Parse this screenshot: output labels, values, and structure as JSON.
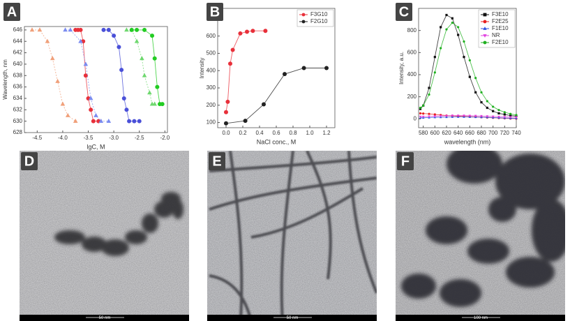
{
  "chart_data": [
    {
      "type": "line",
      "panel": "A",
      "x_label": "lgC, M",
      "y_label": "Wavelength, nm",
      "xlim": [
        -4.75,
        -1.95
      ],
      "ylim": [
        628,
        646.6
      ],
      "xticks": [
        -4.5,
        {
          "value": -4,
          "label": "-4.0"
        },
        -3.5,
        {
          "value": -3,
          "label": "-3.0"
        },
        -2.5,
        {
          "value": -2,
          "label": "-2.0"
        }
      ],
      "yticks": [
        628,
        630,
        632,
        634,
        636,
        638,
        640,
        642,
        644,
        646
      ],
      "series": [
        {
          "color": "#f0a07a",
          "marker": "triangle",
          "dashed": true,
          "x": [
            -4.6,
            -4.45,
            -4.3,
            -4.2,
            -4.1,
            -4.0,
            -3.9,
            -3.75
          ],
          "values": [
            646,
            646,
            644,
            641,
            637,
            633,
            631,
            630
          ]
        },
        {
          "color": "#e8303a",
          "marker": "circle",
          "dashed": false,
          "x": [
            -3.75,
            -3.7,
            -3.65,
            -3.6,
            -3.55,
            -3.5,
            -3.45,
            -3.4,
            -3.3
          ],
          "values": [
            646,
            646,
            646,
            644,
            638,
            634,
            632,
            630,
            630
          ]
        },
        {
          "color": "#7b8cf0",
          "marker": "triangle",
          "dashed": true,
          "x": [
            -3.95,
            -3.85,
            -3.65,
            -3.55,
            -3.45,
            -3.35,
            -3.25,
            -3.1
          ],
          "values": [
            646,
            646,
            644,
            640,
            634,
            631,
            630,
            630
          ]
        },
        {
          "color": "#4a50d8",
          "marker": "circle",
          "dashed": false,
          "x": [
            -3.2,
            -3.1,
            -3.0,
            -2.9,
            -2.85,
            -2.8,
            -2.75,
            -2.7,
            -2.6,
            -2.5
          ],
          "values": [
            646,
            646,
            645,
            643,
            639,
            634,
            632,
            630,
            630,
            630
          ]
        },
        {
          "color": "#6ed86e",
          "marker": "triangle",
          "dashed": true,
          "x": [
            -2.75,
            -2.65,
            -2.55,
            -2.45,
            -2.4,
            -2.3,
            -2.25,
            -2.2
          ],
          "values": [
            646,
            646,
            644,
            641,
            638,
            635,
            633,
            633
          ]
        },
        {
          "color": "#22cc22",
          "marker": "circle",
          "dashed": false,
          "x": [
            -2.65,
            -2.55,
            -2.4,
            -2.25,
            -2.2,
            -2.15,
            -2.1,
            -2.05
          ],
          "values": [
            646,
            646,
            646,
            645,
            641,
            636,
            633,
            633
          ]
        }
      ]
    },
    {
      "type": "line",
      "panel": "B",
      "x_label": "NaCl conc., M",
      "y_label": "Intensity",
      "xlim": [
        -0.1,
        1.3
      ],
      "ylim": [
        70,
        760
      ],
      "xticks": [
        {
          "value": 0,
          "label": "0.0"
        },
        0.2,
        0.4,
        0.6,
        0.8,
        {
          "value": 1,
          "label": "1.0"
        },
        1.2
      ],
      "yticks": [
        100,
        200,
        300,
        400,
        500,
        600,
        700
      ],
      "legend": "upper right",
      "series": [
        {
          "name": "F3G10",
          "color": "#e8303a",
          "marker": "circle",
          "dashed": false,
          "x": [
            0,
            0.02,
            0.05,
            0.08,
            0.17,
            0.25,
            0.32,
            0.47
          ],
          "values": [
            160,
            220,
            440,
            520,
            615,
            625,
            630,
            630
          ]
        },
        {
          "name": "F2G10",
          "color": "#222222",
          "marker": "circle",
          "dashed": false,
          "x": [
            0,
            0.23,
            0.45,
            0.7,
            0.93,
            1.2
          ],
          "values": [
            95,
            110,
            205,
            380,
            415,
            415
          ]
        }
      ]
    },
    {
      "type": "line",
      "panel": "C",
      "x_label": "wavelength (nm)",
      "y_label": "Intensity, a.u.",
      "xlim": [
        572,
        740
      ],
      "ylim": [
        -80,
        1000
      ],
      "xticks": [
        580,
        600,
        620,
        640,
        660,
        680,
        700,
        720,
        740
      ],
      "yticks": [
        0,
        200,
        400,
        600,
        800
      ],
      "legend": "upper right",
      "series": [
        {
          "name": "F3E10",
          "color": "#111111",
          "marker": "square",
          "dashed": false,
          "x": [
            575,
            580,
            590,
            600,
            610,
            620,
            630,
            640,
            650,
            660,
            670,
            680,
            690,
            700,
            710,
            720,
            730,
            740
          ],
          "values": [
            90,
            120,
            280,
            560,
            830,
            940,
            910,
            760,
            560,
            380,
            240,
            150,
            100,
            70,
            50,
            40,
            30,
            25
          ]
        },
        {
          "name": "F2E25",
          "color": "#e82020",
          "marker": "circle",
          "dashed": false,
          "x": [
            575,
            580,
            590,
            600,
            610,
            620,
            630,
            640,
            650,
            660,
            670,
            680,
            690,
            700,
            710,
            720,
            730,
            740
          ],
          "values": [
            50,
            48,
            45,
            40,
            35,
            30,
            28,
            25,
            22,
            20,
            18,
            15,
            12,
            10,
            8,
            5,
            3,
            2
          ]
        },
        {
          "name": "F1E10",
          "color": "#3050e0",
          "marker": "triangle",
          "dashed": false,
          "x": [
            575,
            580,
            590,
            600,
            610,
            620,
            630,
            640,
            650,
            660,
            670,
            680,
            690,
            700,
            710,
            720,
            730,
            740
          ],
          "values": [
            10,
            10,
            12,
            14,
            15,
            16,
            17,
            18,
            18,
            17,
            16,
            15,
            14,
            12,
            10,
            8,
            6,
            5
          ]
        },
        {
          "name": "NR",
          "color": "#e040e0",
          "marker": "triangle-down",
          "dashed": false,
          "x": [
            575,
            580,
            590,
            600,
            610,
            620,
            630,
            640,
            650,
            660,
            670,
            680,
            690,
            700,
            710,
            720,
            730,
            740
          ],
          "values": [
            20,
            20,
            22,
            24,
            26,
            28,
            30,
            30,
            30,
            29,
            28,
            26,
            24,
            22,
            20,
            18,
            16,
            15
          ]
        },
        {
          "name": "F2E10",
          "color": "#20b020",
          "marker": "circle",
          "dashed": false,
          "x": [
            575,
            580,
            590,
            600,
            610,
            620,
            630,
            640,
            650,
            660,
            670,
            680,
            690,
            700,
            710,
            720,
            730,
            740
          ],
          "values": [
            100,
            120,
            220,
            420,
            640,
            810,
            870,
            830,
            700,
            530,
            370,
            240,
            160,
            110,
            80,
            60,
            45,
            35
          ]
        }
      ]
    }
  ],
  "images": [
    {
      "panel": "D",
      "scale_bar": "50 nm"
    },
    {
      "panel": "E",
      "scale_bar": "50 nm"
    },
    {
      "panel": "F",
      "scale_bar": "100 nm"
    }
  ]
}
